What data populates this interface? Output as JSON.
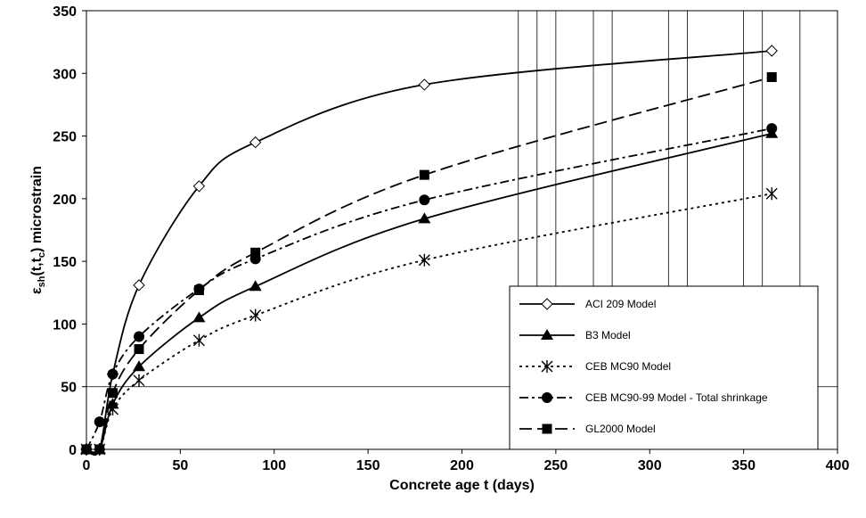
{
  "chart_data": {
    "type": "line",
    "title": "",
    "xlabel": "Concrete age t (days)",
    "ylabel_parts": {
      "base": "ε",
      "sub1": "sh",
      "mid": "(t,t",
      "sub2": "c",
      "end": ")  microstrain"
    },
    "xlim": [
      0,
      400
    ],
    "ylim": [
      0,
      350
    ],
    "xticks": [
      0,
      50,
      100,
      150,
      200,
      250,
      300,
      350,
      400
    ],
    "yticks": [
      0,
      50,
      100,
      150,
      200,
      250,
      300,
      350
    ],
    "grid": "custom",
    "hgrid_values": [
      50
    ],
    "vgrid_values": [
      230,
      240,
      250,
      270,
      280,
      310,
      320,
      350,
      360,
      380
    ],
    "legend_position": "bottom-right",
    "series": [
      {
        "name": "ACI 209 Model",
        "marker": "diamond-open",
        "dash": "solid",
        "x": [
          0,
          7,
          14,
          28,
          60,
          90,
          180,
          365
        ],
        "y": [
          0,
          0,
          60,
          131,
          210,
          245,
          291,
          318
        ]
      },
      {
        "name": "B3 Model",
        "marker": "triangle",
        "dash": "solid",
        "x": [
          0,
          7,
          14,
          28,
          60,
          90,
          180,
          365
        ],
        "y": [
          0,
          0,
          36,
          66,
          105,
          130,
          184,
          252
        ]
      },
      {
        "name": "CEB MC90 Model",
        "marker": "asterisk",
        "dash": "dotted",
        "x": [
          0,
          7,
          14,
          28,
          60,
          90,
          180,
          365
        ],
        "y": [
          0,
          0,
          32,
          55,
          87,
          107,
          151,
          204
        ]
      },
      {
        "name": "CEB MC90-99 Model - Total shrinkage",
        "marker": "circle",
        "dash": "dashdot",
        "x": [
          0,
          7,
          14,
          28,
          60,
          90,
          180,
          365
        ],
        "y": [
          0,
          22,
          60,
          90,
          128,
          152,
          199,
          256
        ]
      },
      {
        "name": "GL2000 Model",
        "marker": "square",
        "dash": "longdash",
        "x": [
          0,
          7,
          14,
          28,
          60,
          90,
          180,
          365
        ],
        "y": [
          0,
          0,
          45,
          80,
          127,
          157,
          219,
          297
        ]
      }
    ]
  }
}
